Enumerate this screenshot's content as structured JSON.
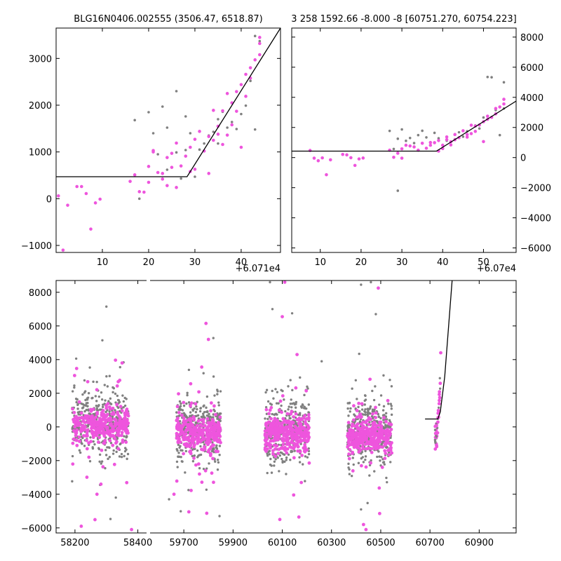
{
  "chart_data": [
    {
      "type": "scatter",
      "title": "BLG16N0406.002555 (3506.47, 6518.87)",
      "offset_label": "+6.071e4",
      "xlim": [
        0,
        48.5
      ],
      "ylim": [
        -1150,
        3650
      ],
      "xticks": [
        10,
        20,
        30,
        40
      ],
      "yticks": [
        -1000,
        0,
        1000,
        2000,
        3000
      ],
      "yaxis": "left",
      "series": [
        {
          "name": "gray",
          "color": "#808080",
          "points": [
            [
              17,
              1680
            ],
            [
              18,
              0
            ],
            [
              20,
              1850
            ],
            [
              21,
              1400
            ],
            [
              22,
              950
            ],
            [
              23,
              1970
            ],
            [
              24,
              1520
            ],
            [
              24,
              620
            ],
            [
              26,
              2300
            ],
            [
              26,
              990
            ],
            [
              27,
              430
            ],
            [
              28,
              1760
            ],
            [
              28,
              1040
            ],
            [
              29,
              1400
            ],
            [
              30,
              470
            ],
            [
              31,
              1050
            ],
            [
              32,
              1180
            ],
            [
              33,
              1350
            ],
            [
              34,
              1430
            ],
            [
              35,
              1700
            ],
            [
              35,
              1180
            ],
            [
              36,
              1860
            ],
            [
              37,
              1520
            ],
            [
              38,
              1640
            ],
            [
              39,
              1490
            ],
            [
              40,
              1810
            ],
            [
              41,
              1990
            ],
            [
              42,
              2520
            ],
            [
              43,
              3480
            ],
            [
              43,
              1480
            ],
            [
              44,
              3370
            ]
          ]
        },
        {
          "name": "magenta",
          "color": "#ee55dd",
          "points": [
            [
              0.5,
              60
            ],
            [
              1.5,
              -1100
            ],
            [
              2.5,
              -140
            ],
            [
              4.5,
              260
            ],
            [
              5.5,
              260
            ],
            [
              6.5,
              110
            ],
            [
              7.5,
              -650
            ],
            [
              8.5,
              -90
            ],
            [
              9.5,
              -10
            ],
            [
              16,
              370
            ],
            [
              17,
              510
            ],
            [
              18,
              150
            ],
            [
              19,
              140
            ],
            [
              20,
              690
            ],
            [
              20,
              350
            ],
            [
              21,
              1030
            ],
            [
              21,
              1000
            ],
            [
              22,
              560
            ],
            [
              23,
              540
            ],
            [
              23,
              420
            ],
            [
              24,
              880
            ],
            [
              24,
              280
            ],
            [
              25,
              970
            ],
            [
              25,
              670
            ],
            [
              26,
              1190
            ],
            [
              26,
              240
            ],
            [
              27,
              700
            ],
            [
              28,
              910
            ],
            [
              29,
              1100
            ],
            [
              29,
              580
            ],
            [
              30,
              1270
            ],
            [
              30,
              630
            ],
            [
              31,
              1440
            ],
            [
              32,
              1020
            ],
            [
              33,
              540
            ],
            [
              33,
              1330
            ],
            [
              34,
              1890
            ],
            [
              34,
              1250
            ],
            [
              35,
              1550
            ],
            [
              35,
              1380
            ],
            [
              36,
              1880
            ],
            [
              36,
              1160
            ],
            [
              37,
              2250
            ],
            [
              37,
              1360
            ],
            [
              38,
              2050
            ],
            [
              38,
              1580
            ],
            [
              39,
              2290
            ],
            [
              39,
              1870
            ],
            [
              40,
              2440
            ],
            [
              40,
              1100
            ],
            [
              41,
              2660
            ],
            [
              41,
              2190
            ],
            [
              42,
              2800
            ],
            [
              42,
              2580
            ],
            [
              43,
              2970
            ],
            [
              44,
              3320
            ],
            [
              44,
              3450
            ],
            [
              44,
              3080
            ]
          ]
        }
      ],
      "model_line": [
        [
          0,
          470
        ],
        [
          28.3,
          470
        ],
        [
          48.5,
          3650
        ]
      ]
    },
    {
      "type": "scatter",
      "title": "3 258 1592.66 -8.000 -8 [60751.270, 60754.223]",
      "offset_label": "+6.07e4",
      "xlim": [
        3,
        58
      ],
      "ylim": [
        -6300,
        8600
      ],
      "xticks": [
        10,
        20,
        30,
        40,
        50
      ],
      "yticks": [
        -6000,
        -4000,
        -2000,
        0,
        2000,
        4000,
        6000,
        8000
      ],
      "yaxis": "right",
      "series": [
        {
          "name": "gray",
          "color": "#808080",
          "points": [
            [
              27,
              1770
            ],
            [
              28,
              570
            ],
            [
              29,
              -2200
            ],
            [
              29,
              1250
            ],
            [
              30,
              1870
            ],
            [
              31,
              1110
            ],
            [
              32,
              1300
            ],
            [
              33,
              960
            ],
            [
              34,
              1490
            ],
            [
              35,
              1780
            ],
            [
              36,
              1340
            ],
            [
              37,
              820
            ],
            [
              38,
              1640
            ],
            [
              39,
              1280
            ],
            [
              40,
              580
            ],
            [
              41,
              1120
            ],
            [
              42,
              1040
            ],
            [
              43,
              1220
            ],
            [
              44,
              1680
            ],
            [
              45,
              1390
            ],
            [
              46,
              1750
            ],
            [
              47,
              1610
            ],
            [
              48,
              2130
            ],
            [
              49,
              1930
            ],
            [
              50,
              2660
            ],
            [
              51,
              5350
            ],
            [
              52,
              5330
            ],
            [
              53,
              3150
            ],
            [
              54,
              1490
            ],
            [
              55,
              5000
            ],
            [
              55,
              3260
            ]
          ]
        },
        {
          "name": "magenta",
          "color": "#ee55dd",
          "points": [
            [
              7.5,
              470
            ],
            [
              8.5,
              -40
            ],
            [
              9.5,
              -210
            ],
            [
              10.5,
              -20
            ],
            [
              11.5,
              -1140
            ],
            [
              12.5,
              -150
            ],
            [
              15.5,
              210
            ],
            [
              16.5,
              180
            ],
            [
              17.5,
              -10
            ],
            [
              18.5,
              -520
            ],
            [
              19.5,
              -90
            ],
            [
              20.5,
              -30
            ],
            [
              27,
              490
            ],
            [
              28,
              20
            ],
            [
              29,
              290
            ],
            [
              30,
              -40
            ],
            [
              30,
              580
            ],
            [
              31,
              820
            ],
            [
              32,
              770
            ],
            [
              33,
              710
            ],
            [
              34,
              490
            ],
            [
              35,
              950
            ],
            [
              36,
              620
            ],
            [
              37,
              1000
            ],
            [
              37,
              820
            ],
            [
              38,
              990
            ],
            [
              39,
              1130
            ],
            [
              39,
              430
            ],
            [
              40,
              820
            ],
            [
              40,
              600
            ],
            [
              41,
              1190
            ],
            [
              41,
              1370
            ],
            [
              42,
              1050
            ],
            [
              42,
              840
            ],
            [
              43,
              1530
            ],
            [
              43,
              1180
            ],
            [
              44,
              1320
            ],
            [
              45,
              1780
            ],
            [
              46,
              1530
            ],
            [
              46,
              1360
            ],
            [
              47,
              2150
            ],
            [
              47,
              1590
            ],
            [
              48,
              2090
            ],
            [
              48,
              1740
            ],
            [
              49,
              2160
            ],
            [
              50,
              2380
            ],
            [
              50,
              1060
            ],
            [
              51,
              2540
            ],
            [
              51,
              2750
            ],
            [
              52,
              2670
            ],
            [
              53,
              3260
            ],
            [
              53,
              2900
            ],
            [
              54,
              3360
            ],
            [
              55,
              3870
            ],
            [
              55,
              3560
            ]
          ]
        }
      ],
      "model_line": [
        [
          3,
          430
        ],
        [
          38.5,
          430
        ],
        [
          58,
          3750
        ]
      ]
    },
    {
      "type": "scatter",
      "title": "",
      "broken_x": true,
      "xlim": [
        58100,
        61050
      ],
      "ylim": [
        -6300,
        8700
      ],
      "xticks": [
        58200,
        58400,
        59700,
        59900,
        60100,
        60300,
        60500,
        60700,
        60900
      ],
      "yticks": [
        -6000,
        -4000,
        -2000,
        0,
        2000,
        4000,
        6000,
        8000
      ],
      "yaxis": "left",
      "segments": [
        {
          "x_domain": [
            58140,
            58430
          ],
          "season_center": 58280,
          "season_half_width": 90
        },
        {
          "x_domain": [
            59560,
            61050
          ],
          "season_centers": [
            59760,
            60120,
            60455
          ],
          "season_half_width": 90
        }
      ],
      "outliers_gray": [
        [
          58300,
          7150
        ],
        [
          59820,
          5280
        ],
        [
          60050,
          8600
        ],
        [
          60060,
          7000
        ],
        [
          60140,
          6750
        ],
        [
          60420,
          8450
        ],
        [
          60460,
          8600
        ],
        [
          60480,
          6700
        ],
        [
          60260,
          3900
        ],
        [
          59640,
          -4300
        ],
        [
          60420,
          -4900
        ],
        [
          58330,
          -4200
        ],
        [
          59845,
          -5300
        ]
      ],
      "outliers_magenta": [
        [
          58350,
          3800
        ],
        [
          59790,
          6150
        ],
        [
          59800,
          5200
        ],
        [
          60110,
          8600
        ],
        [
          60100,
          6550
        ],
        [
          60490,
          8250
        ],
        [
          60160,
          4300
        ],
        [
          59660,
          -4000
        ],
        [
          60090,
          -5500
        ],
        [
          60430,
          -5800
        ],
        [
          60440,
          -6100
        ],
        [
          58220,
          -5900
        ],
        [
          58380,
          -6100
        ],
        [
          58270,
          -4000
        ]
      ],
      "event_points_x_range": [
        60720,
        60745
      ],
      "model_line": [
        [
          60680,
          470
        ],
        [
          60732,
          470
        ],
        [
          60742,
          900
        ],
        [
          60760,
          3000
        ],
        [
          60790,
          8700
        ]
      ]
    }
  ]
}
